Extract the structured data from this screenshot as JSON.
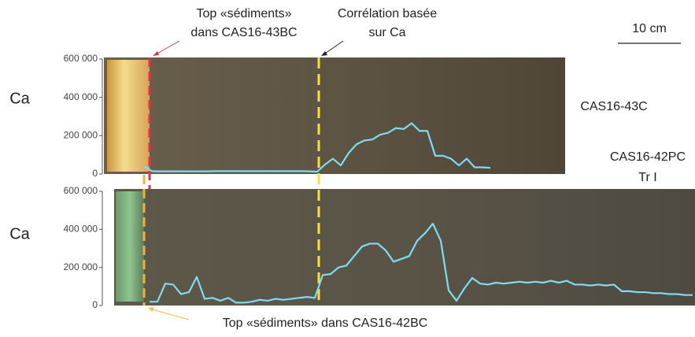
{
  "chart_data": [
    {
      "type": "line",
      "y_label": "Ca",
      "label": [
        "CAS16-43C"
      ],
      "color": "#7fdcf0",
      "ylim": [
        0,
        600000
      ],
      "yticks": [
        0,
        {
          "value": 200000,
          "label": "200 000"
        },
        {
          "value": 400000,
          "label": "400 000"
        },
        {
          "value": 600000,
          "label": "600 000"
        }
      ],
      "categories": [
        null,
        null,
        null,
        null,
        null,
        null,
        null,
        null,
        null,
        null,
        null,
        null,
        null,
        null,
        null,
        null,
        null,
        null,
        null,
        null,
        null,
        null,
        null,
        null,
        null,
        null,
        null,
        null,
        null,
        null,
        null,
        null,
        null,
        null,
        null,
        null,
        null,
        null,
        null,
        null,
        null,
        null,
        null,
        null,
        null
      ],
      "values": [
        40000,
        15000,
        14000,
        14000,
        14000,
        14000,
        14000,
        14000,
        14000,
        15000,
        15000,
        15000,
        15000,
        15000,
        15000,
        15000,
        15000,
        15000,
        15000,
        15000,
        15000,
        14000,
        12000,
        50000,
        80000,
        45000,
        110000,
        155000,
        175000,
        180000,
        205000,
        215000,
        240000,
        235000,
        265000,
        225000,
        225000,
        95000,
        95000,
        80000,
        45000,
        80000,
        35000,
        35000,
        32000
      ]
    },
    {
      "type": "line",
      "y_label": "Ca",
      "label": [
        "CAS16-42PC",
        "Tr I"
      ],
      "color": "#7fdcf0",
      "ylim": [
        0,
        600000
      ],
      "yticks": [
        0,
        {
          "value": 200000,
          "label": "200 000"
        },
        {
          "value": 400000,
          "label": "400 000"
        },
        {
          "value": 600000,
          "label": "600 000"
        }
      ],
      "categories": [
        null,
        null,
        null,
        null,
        null,
        null,
        null,
        null,
        null,
        null,
        null,
        null,
        null,
        null,
        null,
        null,
        null,
        null,
        null,
        null,
        null,
        null,
        null,
        null,
        null,
        null,
        null,
        null,
        null,
        null,
        null,
        null,
        null,
        null,
        null,
        null,
        null,
        null,
        null,
        null,
        null,
        null,
        null,
        null,
        null,
        null,
        null,
        null,
        null,
        null,
        null,
        null,
        null,
        null,
        null,
        null,
        null,
        null,
        null,
        null,
        null,
        null,
        null,
        null,
        null,
        null,
        null,
        null,
        null,
        null
      ],
      "values": [
        20000,
        20000,
        115000,
        110000,
        60000,
        70000,
        150000,
        35000,
        40000,
        25000,
        40000,
        15000,
        15000,
        20000,
        30000,
        25000,
        35000,
        30000,
        35000,
        40000,
        45000,
        40000,
        160000,
        165000,
        200000,
        210000,
        260000,
        310000,
        325000,
        325000,
        290000,
        230000,
        245000,
        260000,
        340000,
        380000,
        430000,
        340000,
        80000,
        25000,
        90000,
        145000,
        115000,
        110000,
        120000,
        115000,
        120000,
        125000,
        120000,
        125000,
        120000,
        130000,
        120000,
        130000,
        110000,
        110000,
        105000,
        110000,
        105000,
        110000,
        75000,
        75000,
        70000,
        70000,
        65000,
        65000,
        60000,
        60000,
        55000,
        55000
      ]
    }
  ],
  "annotations": [
    {
      "lines": [
        "Top «sédiments»",
        "dans CAS16-43BC"
      ]
    },
    {
      "lines": [
        "Corrélation basée",
        "sur Ca"
      ]
    },
    {
      "lines": [
        "Top «sédiments» dans CAS16-42BC"
      ]
    }
  ],
  "scale_bar": "10 cm"
}
